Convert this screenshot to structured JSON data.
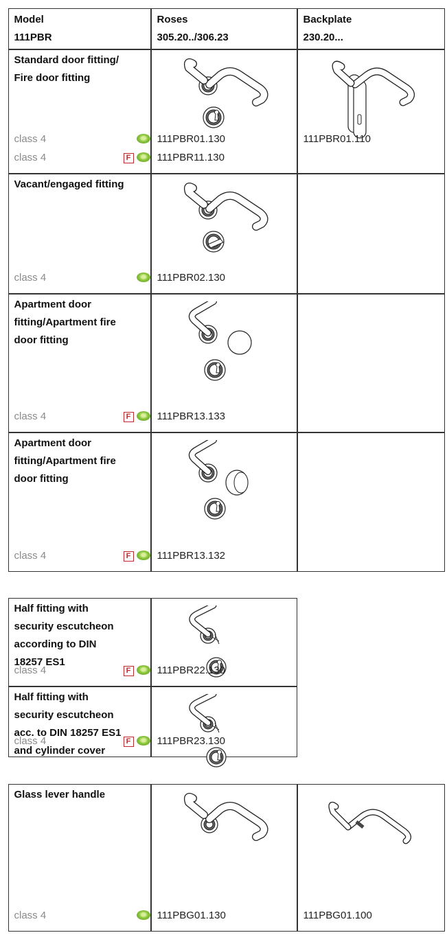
{
  "tables": [
    {
      "header": [
        [
          "Model",
          "111PBR"
        ],
        [
          "Roses",
          "305.20../306.23"
        ],
        [
          "Backplate",
          "230.20..."
        ]
      ],
      "rows": [
        {
          "label": [
            "Standard door fitting/",
            "Fire door fitting"
          ],
          "classes": [
            {
              "text": "class 4"
            },
            {
              "text": "class 4",
              "fire": "F"
            }
          ],
          "roses": [
            "111PBR01.130",
            "111PBR11.130"
          ],
          "backplate": [
            "111PBR01.110"
          ]
        },
        {
          "label": [
            "Vacant/engaged fitting"
          ],
          "classes": [
            {
              "text": "class 4"
            }
          ],
          "roses": [
            "111PBR02.130"
          ]
        },
        {
          "label": [
            "Apartment door",
            "fitting/Apartment fire",
            "door fitting"
          ],
          "classes": [
            {
              "text": "class 4",
              "fire": "F"
            }
          ],
          "roses": [
            "111PBR13.133"
          ]
        },
        {
          "label": [
            "Apartment door",
            "fitting/Apartment fire",
            "door fitting"
          ],
          "classes": [
            {
              "text": "class 4",
              "fire": "F"
            }
          ],
          "roses": [
            "111PBR13.132"
          ]
        }
      ]
    },
    {
      "rows": [
        {
          "label": [
            "Half fitting with",
            "security escutcheon",
            "according to DIN",
            "18257 ES1"
          ],
          "classes": [
            {
              "text": "class 4",
              "fire": "F"
            }
          ],
          "roses": [
            "111PBR22.130"
          ]
        },
        {
          "label": [
            "Half fitting with",
            "security escutcheon",
            "acc. to DIN 18257 ES1",
            "and cylinder cover"
          ],
          "classes": [
            {
              "text": "class 4",
              "fire": "F"
            }
          ],
          "roses": [
            "111PBR23.130"
          ]
        }
      ]
    },
    {
      "rows": [
        {
          "label": [
            "Glass lever handle"
          ],
          "classes": [
            {
              "text": "class 4"
            }
          ],
          "roses": [
            "111PBG01.130"
          ],
          "backplate": [
            "111PBG01.100"
          ]
        }
      ]
    }
  ]
}
